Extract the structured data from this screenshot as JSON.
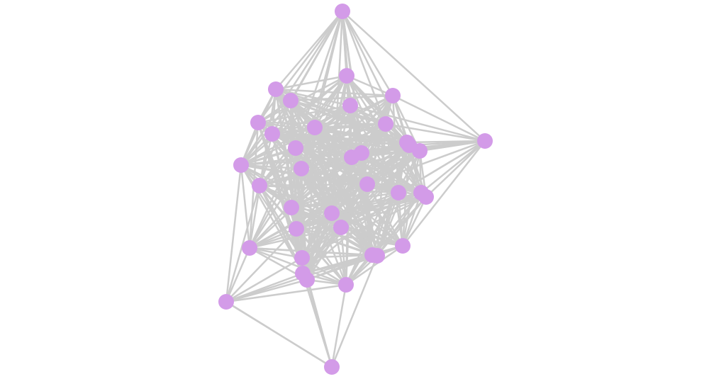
{
  "diagram": {
    "type": "network-graph",
    "node_count": 38,
    "colors": {
      "node": "#d39be8",
      "edge": "#cccccc",
      "background": "#ffffff"
    }
  }
}
